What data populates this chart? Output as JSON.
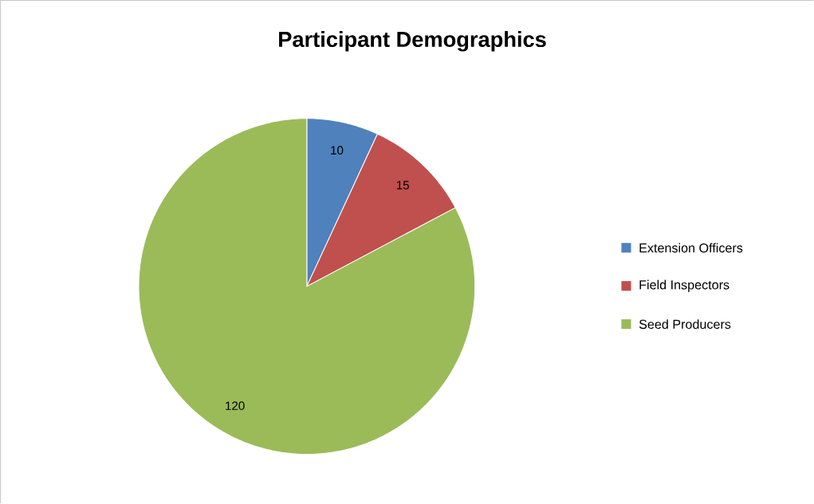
{
  "chart_data": {
    "type": "pie",
    "title": "Participant Demographics",
    "categories": [
      "Extension Officers",
      "Field Inspectors",
      "Seed Producers"
    ],
    "values": [
      10,
      15,
      120
    ],
    "colors": [
      "#4f81bd",
      "#c0504d",
      "#9bbb59"
    ],
    "data_labels": true,
    "legend": "right"
  }
}
